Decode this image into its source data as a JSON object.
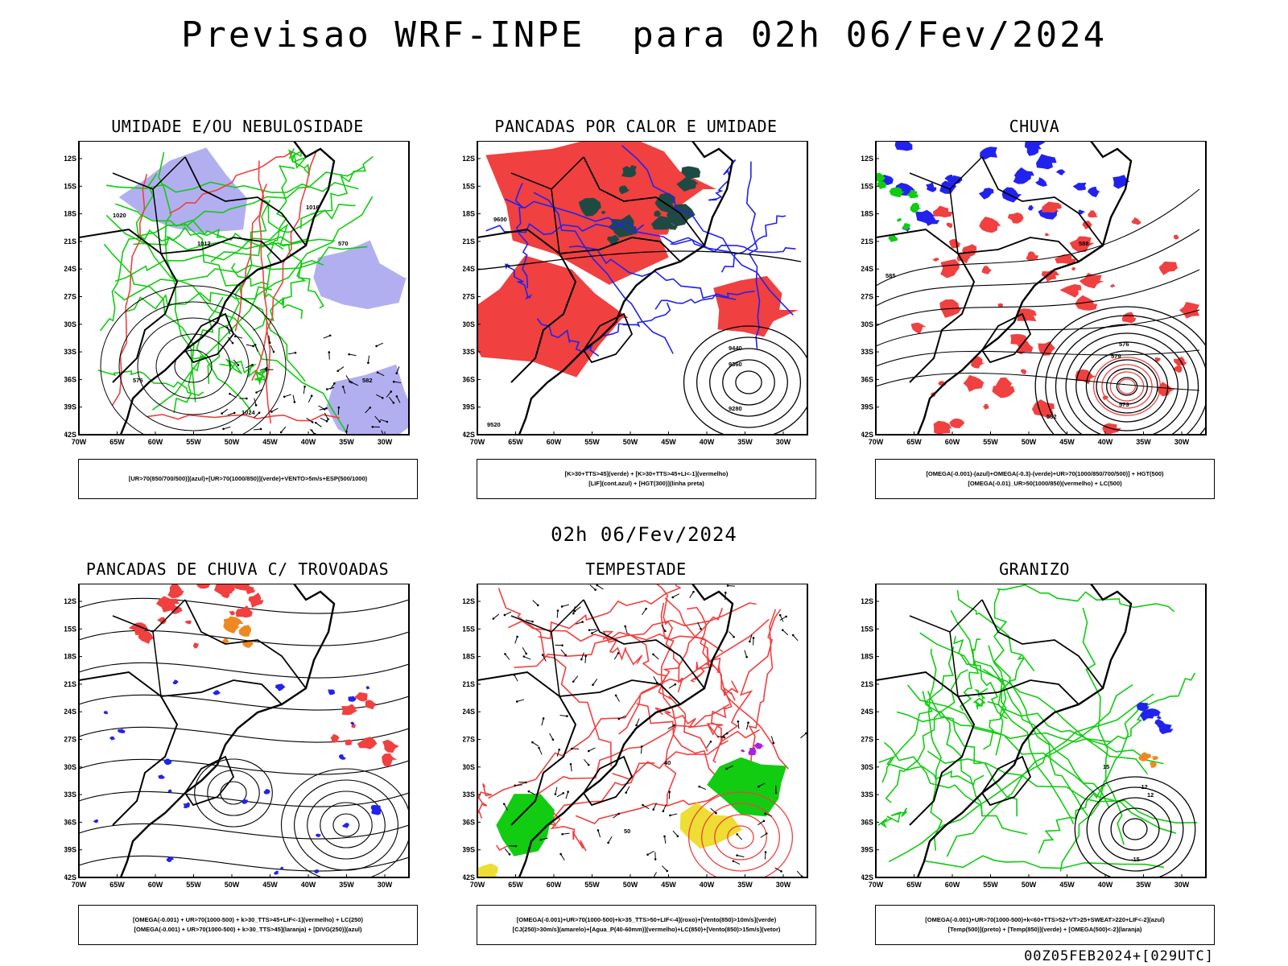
{
  "header": {
    "title": "Previsao WRF-INPE  para 02h 06/Fev/2024",
    "subtitle": "02h 06/Fev/2024",
    "footer": "00Z05FEB2024+[029UTC]"
  },
  "axes": {
    "lat_labels": [
      "12S",
      "15S",
      "18S",
      "21S",
      "24S",
      "27S",
      "30S",
      "33S",
      "36S",
      "39S",
      "42S"
    ],
    "lon_labels": [
      "70W",
      "65W",
      "60W",
      "55W",
      "50W",
      "45W",
      "40W",
      "35W",
      "30W"
    ]
  },
  "panels": [
    {
      "title": "UMIDADE E/OU NEBULOSIDADE",
      "legend": [
        "[UR>70(850/700/500)](azul)+[UR>70(1000/850)](verde)+VENTO>5m/s+ESP(500/1000)"
      ],
      "labels": [
        "1012",
        "1016",
        "1020",
        "1024",
        "576",
        "582",
        "570"
      ]
    },
    {
      "title": "PANCADAS POR CALOR E UMIDADE",
      "legend": [
        "[K>30+TTS>45](verde) + [K>30+TTS>45+LI<-1](vermelho)",
        "[LIF](cont.azul) + [HGT(300)](linha preta)"
      ],
      "labels": [
        "9600",
        "9520",
        "9440",
        "9360",
        "9280"
      ]
    },
    {
      "title": "CHUVA",
      "legend": [
        "[OMEGA(-0.001)-(azul)+OMEGA(-0.3)-(verde)+UR>70(1000/850/700/500)] + HGT(500)",
        "[OMEGA(-0.01)_UR>50(1000/850)(vermelho) + LC(500)"
      ],
      "labels": [
        "585",
        "582",
        "579",
        "576",
        "573",
        "588"
      ]
    },
    {
      "title": "PANCADAS DE CHUVA C/ TROVOADAS",
      "legend": [
        "[OMEGA(-0.001) + UR>70(1000-500) + k>30_TTS>45+LIF<-1](vermelho) + LC(250)",
        "[OMEGA(-0.001) + UR>70(1000-500) + k>30_TTS>45](laranja) + [DIVG(250)](azul)"
      ],
      "labels": []
    },
    {
      "title": "TEMPESTADE",
      "legend": [
        "[OMEGA(-0.001)+UR>70(1000-500)+k>35_TTS>50+LIF<-4](roxo)+[Vento(850)>10m/s](verde)",
        "[CJ(250)>30m/s](amarelo)+[Agua_P(40-60mm)](vermelho)+LC(850)+[Vento(850)>15m/s](vetor)"
      ],
      "labels": [
        "40",
        "50"
      ]
    },
    {
      "title": "GRANIZO",
      "legend": [
        "[OMEGA(-0.001)+UR>70(1000-500)+k<60+TTS>52+VT>25+SWEAT>220+LIF<-2](azul)",
        "[Temp(500)](preto) + [Temp(850)](verde) + [OMEGA(500)<-2](laranja)"
      ],
      "labels": [
        "-12",
        "-15",
        "12",
        "15"
      ]
    }
  ],
  "colors": {
    "blue": "#2222ee",
    "green": "#11cc11",
    "red": "#f04040",
    "dark_teal": "#1f4a44",
    "lavender": "#aaa6f0",
    "orange": "#ee8822",
    "yellow": "#eedd33",
    "purple": "#aa22dd"
  }
}
